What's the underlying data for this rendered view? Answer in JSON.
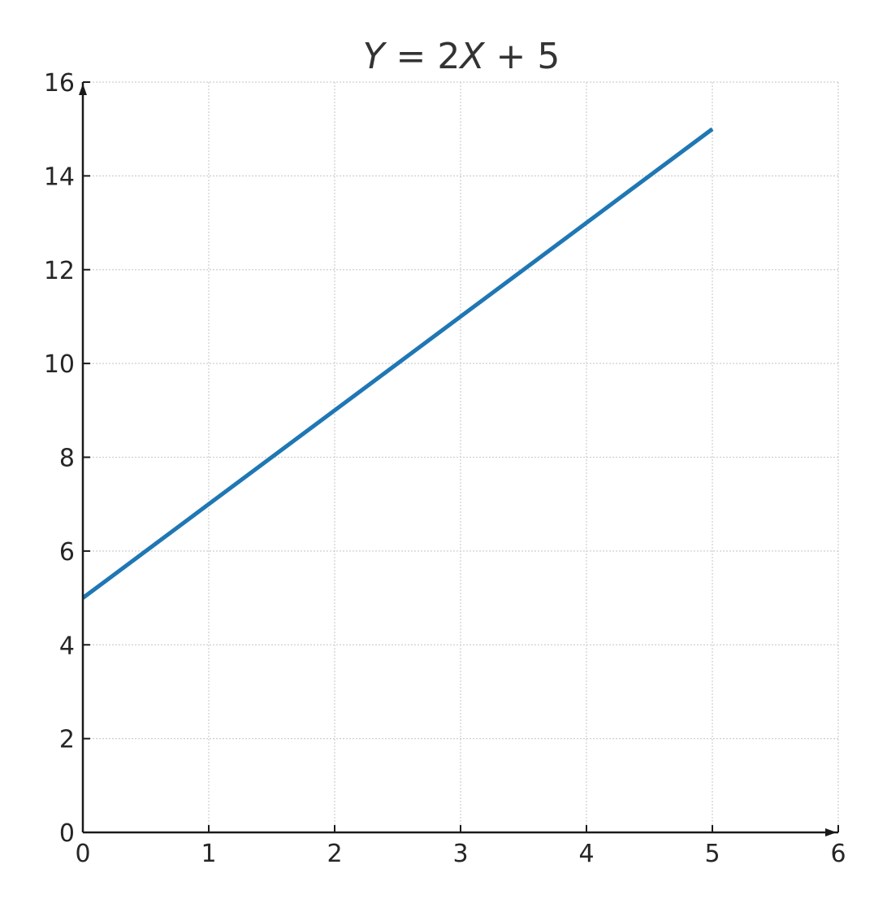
{
  "chart_data": {
    "type": "line",
    "title": {
      "y_var": "Y",
      "equals": " = ",
      "coef": "2",
      "x_var": "X",
      "rest": " + 5"
    },
    "xlabel": "",
    "ylabel": "",
    "xlim": [
      0,
      6
    ],
    "ylim": [
      0,
      16
    ],
    "x_ticks": [
      "0",
      "1",
      "2",
      "3",
      "4",
      "5",
      "6"
    ],
    "y_ticks": [
      "0",
      "2",
      "4",
      "6",
      "8",
      "10",
      "12",
      "14",
      "16"
    ],
    "grid": true,
    "axis_arrows": true,
    "series": [
      {
        "color": "#1f77b4",
        "x": [
          0,
          5
        ],
        "y": [
          5,
          15
        ]
      }
    ]
  }
}
